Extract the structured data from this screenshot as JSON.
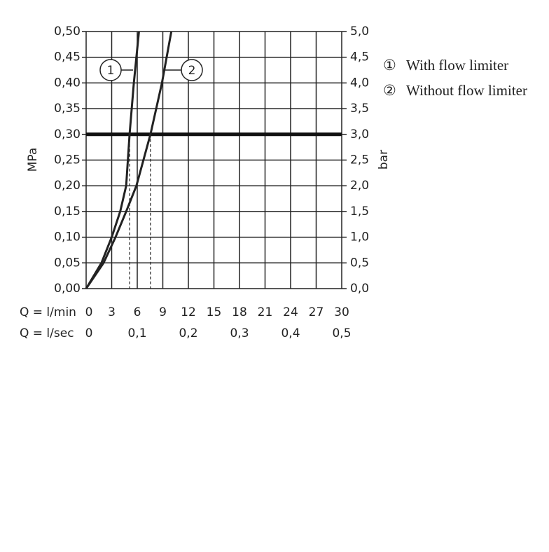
{
  "chart_data": {
    "type": "line",
    "y_label": "MPa",
    "y2_label": "bar",
    "x_label": "Q = l/min",
    "x2_label": "Q = l/sec",
    "xlim": [
      0,
      30
    ],
    "xticks": [
      0,
      3,
      6,
      9,
      12,
      15,
      18,
      21,
      24,
      27,
      30
    ],
    "x2lim": [
      0,
      0.5
    ],
    "x2ticks": [
      0,
      {
        "value": 0.1,
        "label": "0,1"
      },
      {
        "value": 0.2,
        "label": "0,2"
      },
      {
        "value": 0.3,
        "label": "0,3"
      },
      {
        "value": 0.4,
        "label": "0,4"
      },
      {
        "value": 0.5,
        "label": "0,5"
      }
    ],
    "ylim": [
      0,
      0.5
    ],
    "yticks": [
      {
        "value": 0,
        "label": "0,00"
      },
      {
        "value": 0.05,
        "label": "0,05"
      },
      {
        "value": 0.1,
        "label": "0,10"
      },
      {
        "value": 0.15,
        "label": "0,15"
      },
      {
        "value": 0.2,
        "label": "0,20"
      },
      {
        "value": 0.25,
        "label": "0,25"
      },
      {
        "value": 0.3,
        "label": "0,30"
      },
      {
        "value": 0.35,
        "label": "0,35"
      },
      {
        "value": 0.4,
        "label": "0,40"
      },
      {
        "value": 0.45,
        "label": "0,45"
      },
      {
        "value": 0.5,
        "label": "0,50"
      }
    ],
    "y2lim": [
      0,
      5
    ],
    "y2ticks": [
      {
        "value": 0,
        "label": "0,0"
      },
      {
        "value": 0.5,
        "label": "0,5"
      },
      {
        "value": 1,
        "label": "1,0"
      },
      {
        "value": 1.5,
        "label": "1,5"
      },
      {
        "value": 2,
        "label": "2,0"
      },
      {
        "value": 2.5,
        "label": "2,5"
      },
      {
        "value": 3,
        "label": "3,0"
      },
      {
        "value": 3.5,
        "label": "3,5"
      },
      {
        "value": 4,
        "label": "4,0"
      },
      {
        "value": 4.5,
        "label": "4,5"
      },
      {
        "value": 5,
        "label": "5,0"
      }
    ],
    "grid": true,
    "reference_line": 0.3,
    "drop_lines_x": [
      5.1,
      7.55
    ],
    "series": [
      {
        "name": "With flow limiter",
        "marker": "①",
        "label": "1",
        "color": "#222222",
        "x": [
          0,
          1.8,
          3.0,
          4.0,
          4.7,
          5.1,
          5.6,
          6.2
        ],
        "values": [
          0,
          0.05,
          0.1,
          0.15,
          0.2,
          0.3,
          0.4,
          0.5
        ]
      },
      {
        "name": "Without flow limiter",
        "marker": "②",
        "label": "2",
        "color": "#222222",
        "x": [
          0,
          2.05,
          3.45,
          4.7,
          5.9,
          7.55,
          8.9,
          10.0
        ],
        "values": [
          0,
          0.05,
          0.1,
          0.15,
          0.2,
          0.3,
          0.4,
          0.5
        ]
      }
    ]
  }
}
